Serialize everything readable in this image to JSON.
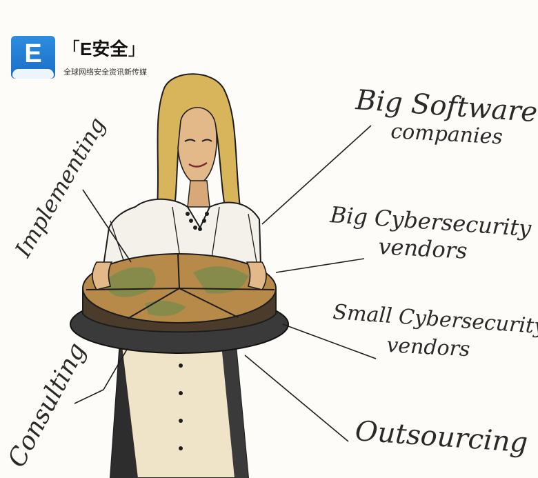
{
  "logo": {
    "icon_letter": "E",
    "bracket_open": "「",
    "name": "E安全",
    "bracket_close": "」",
    "tagline": "全球网络安全资讯新传媒"
  },
  "labels": {
    "implementing": "Implementing",
    "consulting": "Consulting",
    "big_software_1": "Big Software",
    "big_software_2": "companies",
    "big_cyber_1": "Big Cybersecurity",
    "big_cyber_2": "vendors",
    "small_cyber_1": "Small Cybersecurity",
    "small_cyber_2": "vendors",
    "outsourcing": "Outsourcing"
  },
  "colors": {
    "hair": "#d8b45a",
    "skin": "#c9955a",
    "pie_crust": "#b88a4a",
    "pie_filling": "#7d8a4a",
    "tray": "#3a3a3a",
    "ink": "#1c1c1c",
    "logo_blue": "#1f78d1"
  }
}
